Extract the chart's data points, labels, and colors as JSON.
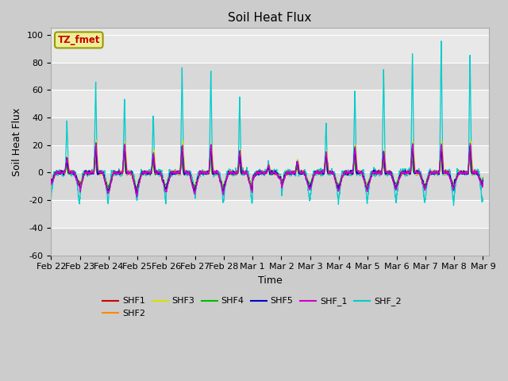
{
  "title": "Soil Heat Flux",
  "xlabel": "Time",
  "ylabel": "Soil Heat Flux",
  "ylim": [
    -60,
    105
  ],
  "yticks": [
    -60,
    -40,
    -20,
    0,
    20,
    40,
    60,
    80,
    100
  ],
  "colors": {
    "SHF1": "#cc0000",
    "SHF2": "#ff8800",
    "SHF3": "#dddd00",
    "SHF4": "#00bb00",
    "SHF5": "#0000cc",
    "SHF_1": "#cc00cc",
    "SHF_2": "#00cccc"
  },
  "tz_fmet_label": "TZ_fmet",
  "tz_fmet_color": "#cc0000",
  "tz_fmet_bg": "#eeee99",
  "background_color": "#cccccc",
  "plot_bg_light": "#e8e8e8",
  "plot_bg_dark": "#d8d8d8",
  "grid_color": "#ffffff",
  "x_tick_labels": [
    "Feb 22",
    "Feb 23",
    "Feb 24",
    "Feb 25",
    "Feb 26",
    "Feb 27",
    "Feb 28",
    "Mar 1",
    "Mar 2",
    "Mar 3",
    "Mar 4",
    "Mar 5",
    "Mar 6",
    "Mar 7",
    "Mar 8",
    "Mar 9"
  ],
  "title_fontsize": 11,
  "label_fontsize": 9,
  "tick_fontsize": 8,
  "figsize": [
    6.4,
    4.8
  ],
  "dpi": 100
}
